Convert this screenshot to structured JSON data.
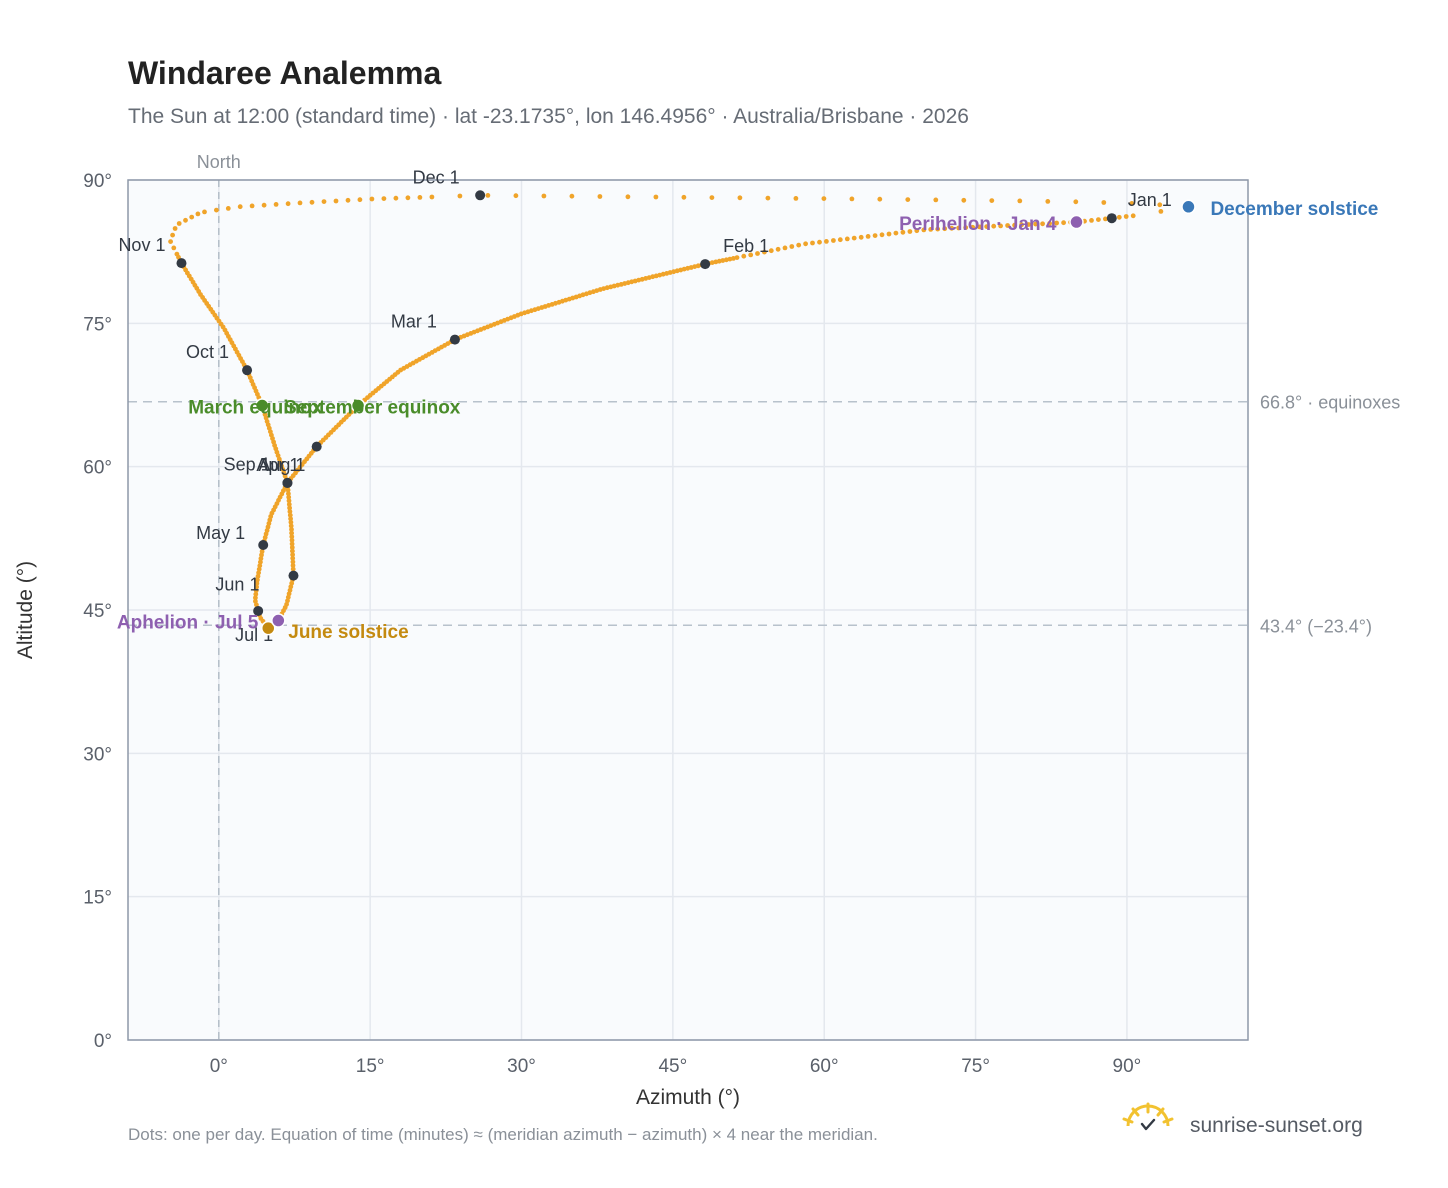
{
  "header": {
    "title": "Windaree Analemma",
    "subtitle": "The Sun at 12:00 (standard time) · lat -23.1735°, lon 146.4956° · Australia/Brisbane · 2026"
  },
  "footer": {
    "note": "Dots: one per day. Equation of time (minutes) ≈ (meridian azimuth − azimuth) × 4 near the meridian.",
    "brand": "sunrise-sunset.org"
  },
  "chart_data": {
    "type": "scatter",
    "xlabel": "Azimuth (°)",
    "ylabel": "Altitude (°)",
    "xlim": [
      -9,
      102
    ],
    "ylim": [
      0,
      90
    ],
    "xticks": [
      0,
      15,
      30,
      45,
      60,
      75,
      90
    ],
    "yticks": [
      0,
      15,
      30,
      45,
      60,
      75,
      90
    ],
    "xtick_labels": [
      "0°",
      "15°",
      "30°",
      "45°",
      "60°",
      "75°",
      "90°"
    ],
    "ytick_labels": [
      "0°",
      "15°",
      "30°",
      "45°",
      "60°",
      "75°",
      "90°"
    ],
    "grid": true,
    "meridian": {
      "x": 0,
      "label": "North"
    },
    "reference_lines": [
      {
        "y": 66.8,
        "label": "66.8° · equinoxes"
      },
      {
        "y": 43.4,
        "label": "43.4° (−23.4°)"
      }
    ],
    "month_markers": [
      {
        "label": "Jan 1",
        "x": 88.5,
        "y": 86.0
      },
      {
        "label": "Feb 1",
        "x": 48.2,
        "y": 81.2
      },
      {
        "label": "Mar 1",
        "x": 23.4,
        "y": 73.3
      },
      {
        "label": "Apr 1",
        "x": 6.8,
        "y": 58.3
      },
      {
        "label": "May 1",
        "x": 4.4,
        "y": 51.8
      },
      {
        "label": "Jun 1",
        "x": 7.4,
        "y": 48.6
      },
      {
        "label": "Jul 1",
        "x": 3.9,
        "y": 44.9
      },
      {
        "label": "Aug 1",
        "x": 6.8,
        "y": 58.3
      },
      {
        "label": "Sep 1",
        "x": 9.7,
        "y": 62.1
      },
      {
        "label": "Oct 1",
        "x": 2.8,
        "y": 70.1
      },
      {
        "label": "Nov 1",
        "x": -3.7,
        "y": 81.3
      },
      {
        "label": "Dec 1",
        "x": 25.9,
        "y": 88.4
      }
    ],
    "events": [
      {
        "label": "December solstice",
        "x": 96.1,
        "y": 87.2,
        "color": "#3a78b8"
      },
      {
        "label": "Perihelion · Jan 4",
        "x": 85.0,
        "y": 85.6,
        "color": "#8e60b0"
      },
      {
        "label": "March equinox",
        "x": 4.3,
        "y": 66.4,
        "color": "#4a8c2a"
      },
      {
        "label": "September equinox",
        "x": 13.8,
        "y": 66.4,
        "color": "#4a8c2a"
      },
      {
        "label": "June solstice",
        "x": 4.9,
        "y": 43.1,
        "color": "#c48a10"
      },
      {
        "label": "Aphelion · Jul 5",
        "x": 5.9,
        "y": 43.9,
        "color": "#8e60b0"
      }
    ],
    "path_keypoints": [
      [
        96.1,
        87.2
      ],
      [
        91,
        86.3
      ],
      [
        85,
        85.6
      ],
      [
        70,
        84.8
      ],
      [
        58,
        83.3
      ],
      [
        48.2,
        81.2
      ],
      [
        38,
        78.6
      ],
      [
        30,
        76.0
      ],
      [
        23.4,
        73.3
      ],
      [
        18,
        70.1
      ],
      [
        13.8,
        66.4
      ],
      [
        9.7,
        62.1
      ],
      [
        6.8,
        58.3
      ],
      [
        5.2,
        55.0
      ],
      [
        4.4,
        51.8
      ],
      [
        3.8,
        48.0
      ],
      [
        3.6,
        46.0
      ],
      [
        4.1,
        44.2
      ],
      [
        4.9,
        43.1
      ],
      [
        5.9,
        43.9
      ],
      [
        6.7,
        45.5
      ],
      [
        7.4,
        48.6
      ],
      [
        7.2,
        53.5
      ],
      [
        6.8,
        58.3
      ],
      [
        5.6,
        62.0
      ],
      [
        4.3,
        66.4
      ],
      [
        2.8,
        70.1
      ],
      [
        0.5,
        74.5
      ],
      [
        -1.8,
        78.0
      ],
      [
        -3.7,
        81.3
      ],
      [
        -4.8,
        83.6
      ],
      [
        -4.2,
        85.3
      ],
      [
        -1.8,
        86.6
      ],
      [
        2,
        87.2
      ],
      [
        8,
        87.6
      ],
      [
        15,
        88.0
      ],
      [
        25.9,
        88.4
      ],
      [
        35,
        88.3
      ],
      [
        45,
        88.2
      ],
      [
        55,
        88.1
      ],
      [
        65,
        88.0
      ],
      [
        72,
        87.9
      ],
      [
        80,
        87.8
      ],
      [
        86,
        87.7
      ],
      [
        92,
        87.5
      ],
      [
        96.1,
        87.2
      ]
    ]
  }
}
